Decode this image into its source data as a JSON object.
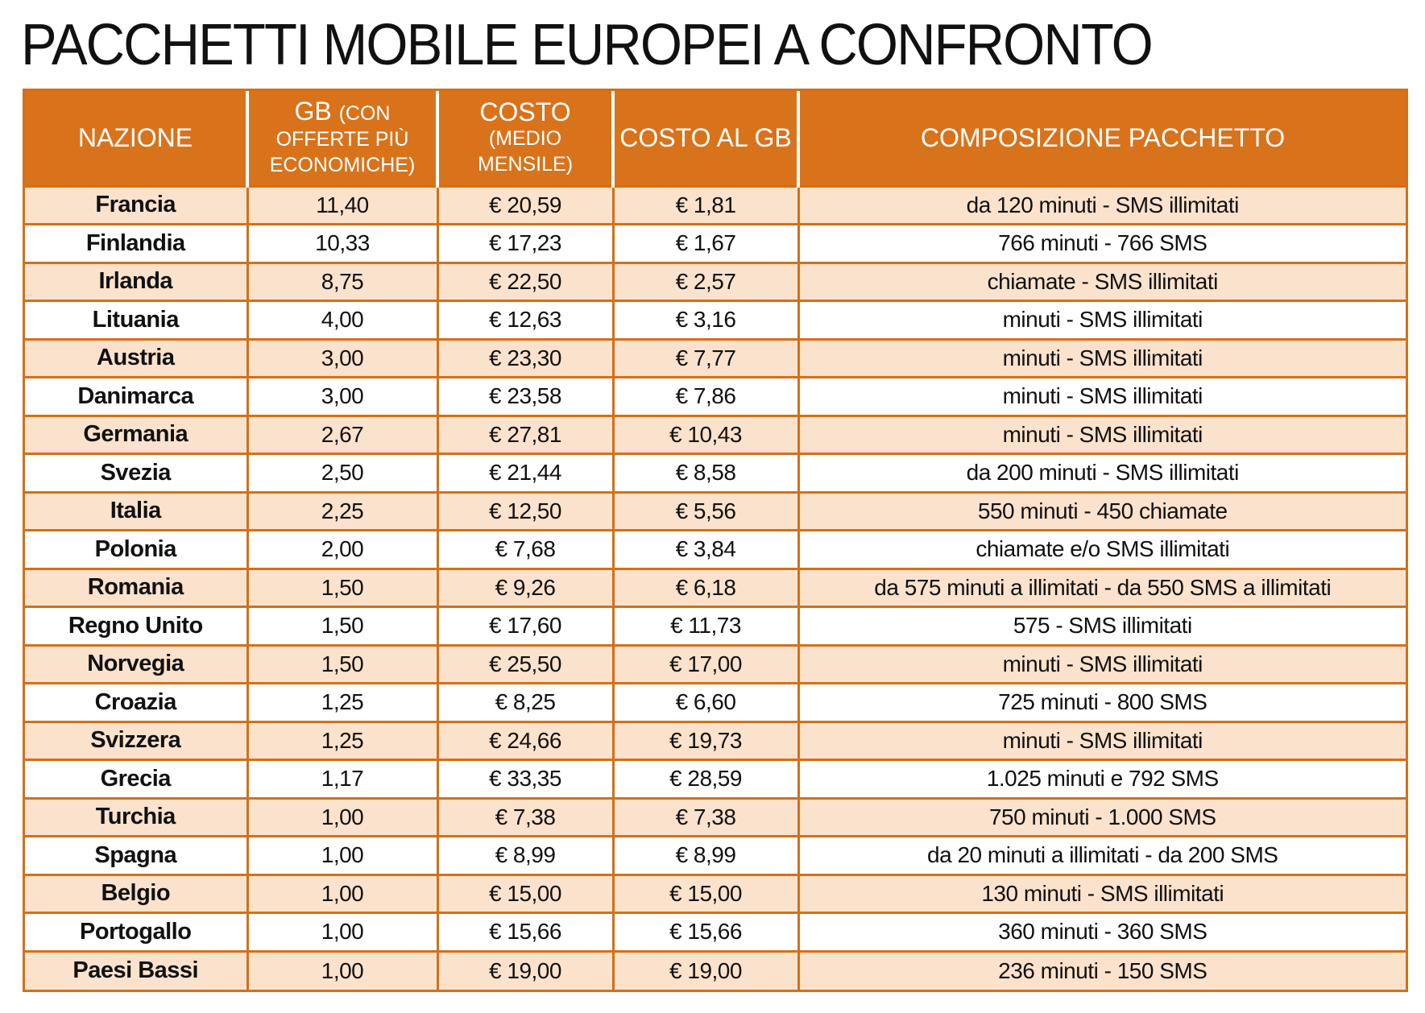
{
  "title": "PACCHETTI MOBILE EUROPEI A CONFRONTO",
  "chart_data": {
    "type": "table",
    "title": "PACCHETTI MOBILE EUROPEI A CONFRONTO",
    "columns": [
      {
        "main": "NAZIONE",
        "sub": ""
      },
      {
        "main": "GB",
        "sub": "(CON OFFERTE PIÙ ECONOMICHE)"
      },
      {
        "main": "COSTO",
        "sub": "(MEDIO MENSILE)"
      },
      {
        "main": "COSTO AL GB",
        "sub": ""
      },
      {
        "main": "COMPOSIZIONE PACCHETTO",
        "sub": ""
      }
    ],
    "rows": [
      [
        "Francia",
        "11,40",
        "€ 20,59",
        "€ 1,81",
        "da 120 minuti - SMS illimitati"
      ],
      [
        "Finlandia",
        "10,33",
        "€ 17,23",
        "€ 1,67",
        "766 minuti - 766 SMS"
      ],
      [
        "Irlanda",
        "8,75",
        "€ 22,50",
        "€ 2,57",
        "chiamate - SMS illimitati"
      ],
      [
        "Lituania",
        "4,00",
        "€ 12,63",
        "€ 3,16",
        "minuti - SMS illimitati"
      ],
      [
        "Austria",
        "3,00",
        "€ 23,30",
        "€ 7,77",
        "minuti - SMS illimitati"
      ],
      [
        "Danimarca",
        "3,00",
        "€ 23,58",
        "€ 7,86",
        "minuti - SMS illimitati"
      ],
      [
        "Germania",
        "2,67",
        "€ 27,81",
        "€ 10,43",
        "minuti - SMS illimitati"
      ],
      [
        "Svezia",
        "2,50",
        "€ 21,44",
        "€ 8,58",
        "da 200 minuti - SMS illimitati"
      ],
      [
        "Italia",
        "2,25",
        "€ 12,50",
        "€ 5,56",
        "550 minuti - 450 chiamate"
      ],
      [
        "Polonia",
        "2,00",
        "€ 7,68",
        "€ 3,84",
        "chiamate e/o SMS illimitati"
      ],
      [
        "Romania",
        "1,50",
        "€ 9,26",
        "€ 6,18",
        "da 575 minuti a illimitati - da 550 SMS a illimitati"
      ],
      [
        "Regno Unito",
        "1,50",
        "€ 17,60",
        "€ 11,73",
        "575 - SMS illimitati"
      ],
      [
        "Norvegia",
        "1,50",
        "€ 25,50",
        "€ 17,00",
        "minuti - SMS illimitati"
      ],
      [
        "Croazia",
        "1,25",
        "€ 8,25",
        "€ 6,60",
        "725 minuti - 800 SMS"
      ],
      [
        "Svizzera",
        "1,25",
        "€ 24,66",
        "€ 19,73",
        "minuti - SMS illimitati"
      ],
      [
        "Grecia",
        "1,17",
        "€ 33,35",
        "€ 28,59",
        "1.025 minuti e 792 SMS"
      ],
      [
        "Turchia",
        "1,00",
        "€ 7,38",
        "€ 7,38",
        "750 minuti - 1.000 SMS"
      ],
      [
        "Spagna",
        "1,00",
        "€ 8,99",
        "€ 8,99",
        "da 20 minuti a illimitati - da 200 SMS"
      ],
      [
        "Belgio",
        "1,00",
        "€ 15,00",
        "€ 15,00",
        "130 minuti - SMS illimitati"
      ],
      [
        "Portogallo",
        "1,00",
        "€ 15,66",
        "€ 15,66",
        "360 minuti - 360 SMS"
      ],
      [
        "Paesi Bassi",
        "1,00",
        "€ 19,00",
        "€ 19,00",
        "236 minuti - 150 SMS"
      ]
    ]
  },
  "colors": {
    "header_bg": "#d8731b",
    "header_text": "#ffffff",
    "border": "#d56f17",
    "row_alt": "#fbe2cc",
    "row_plain": "#ffffff"
  }
}
